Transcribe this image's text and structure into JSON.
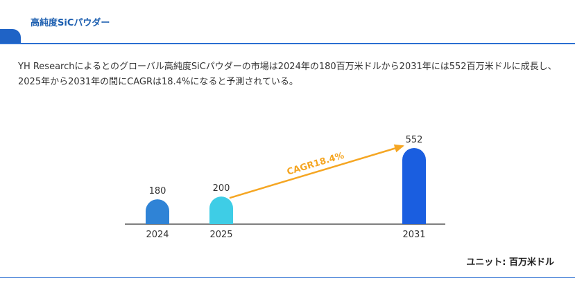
{
  "header": {
    "title": "高純度SiCパウダー"
  },
  "description": "YH Researchによるとのグローバル高純度SiCパウダーの市場は2024年の180百万米ドルから2031年には552百万米ドルに成長し、2025年から2031年の間にCAGRは18.4%になると予測されている。",
  "unit_label": "ユニット: 百万米ドル",
  "colors": {
    "accent": "#1f63c6",
    "bar_2024": "#2f83d6",
    "bar_2025": "#3ecde6",
    "bar_2031": "#1a5ee0",
    "arrow": "#f5a623"
  },
  "chart_data": {
    "type": "bar",
    "categories": [
      "2024",
      "2025",
      "2031"
    ],
    "values": [
      180,
      200,
      552
    ],
    "data_labels": [
      "180",
      "200",
      "552"
    ],
    "annotation": {
      "text": "CAGR18.4%",
      "from": "2025",
      "to": "2031"
    },
    "ylim": [
      0,
      600
    ],
    "grid": false,
    "legend": "none"
  }
}
